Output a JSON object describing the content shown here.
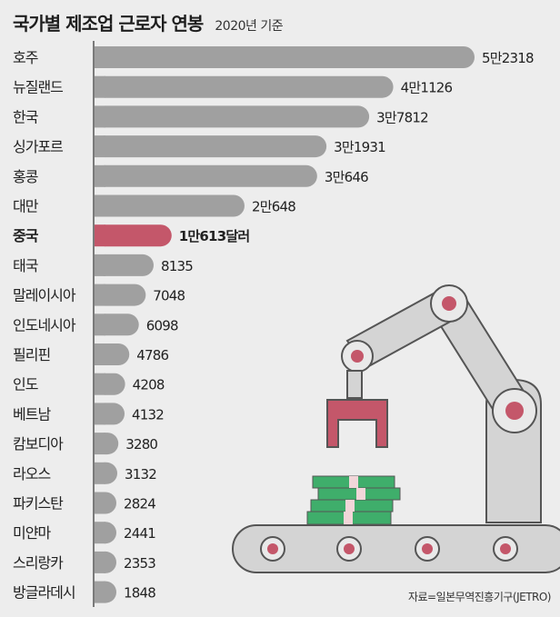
{
  "header": {
    "title": "국가별 제조업 근로자 연봉",
    "subtitle": "2020년 기준"
  },
  "source": "자료=일본무역진흥기구(JETRO)",
  "colors": {
    "bar": "#a0a0a0",
    "highlight": "#c4576a",
    "background": "#ededed",
    "axis": "#555555",
    "money": "#3fae6b"
  },
  "chart_data": {
    "type": "bar",
    "orientation": "horizontal",
    "title": "국가별 제조업 근로자 연봉",
    "subtitle": "2020년 기준",
    "highlight": "중국",
    "categories": [
      "호주",
      "뉴질랜드",
      "한국",
      "싱가포르",
      "홍콩",
      "대만",
      "중국",
      "태국",
      "말레이시아",
      "인도네시아",
      "필리핀",
      "인도",
      "베트남",
      "캄보디아",
      "라오스",
      "파키스탄",
      "미얀마",
      "스리랑카",
      "방글라데시"
    ],
    "values": [
      52318,
      41126,
      37812,
      31931,
      30646,
      20648,
      10613,
      8135,
      7048,
      6098,
      4786,
      4208,
      4132,
      3280,
      3132,
      2824,
      2441,
      2353,
      1848
    ],
    "value_labels": [
      "5만2318",
      "4만1126",
      "3만7812",
      "3만1931",
      "3만646",
      "2만648",
      "1만613달러",
      "8135",
      "7048",
      "6098",
      "4786",
      "4208",
      "4132",
      "3280",
      "3132",
      "2824",
      "2441",
      "2353",
      "1848"
    ],
    "xlim": [
      0,
      52318
    ],
    "grid": false
  }
}
